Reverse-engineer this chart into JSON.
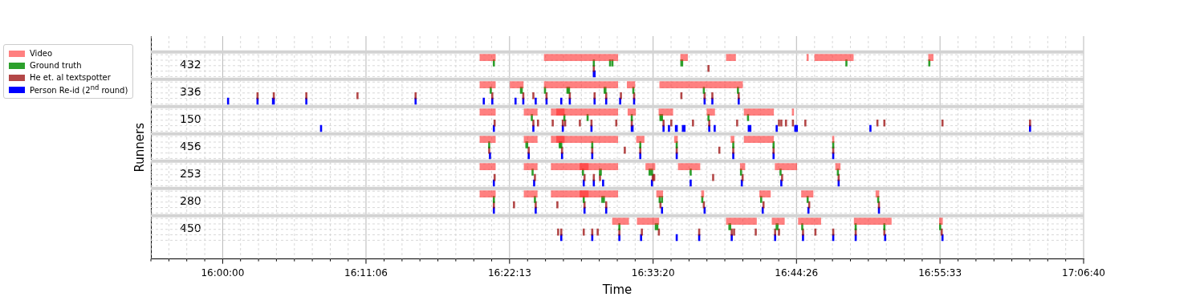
{
  "chart_data": {
    "type": "bar",
    "orientation": "horizontal",
    "xlabel": "Time",
    "ylabel": "Runners",
    "categories": [
      "432",
      "336",
      "150",
      "456",
      "253",
      "280",
      "450"
    ],
    "xlim": [
      15.9074,
      17.11111
    ],
    "xticks": [
      {
        "value": 15.9074,
        "label": null
      },
      {
        "value": 15.9306,
        "label": null
      },
      {
        "value": 15.9537,
        "label": null
      },
      {
        "value": 15.9769,
        "label": null
      },
      {
        "value": 16,
        "label": "16:00:00"
      },
      {
        "value": 16.0231,
        "label": null
      },
      {
        "value": 16.0463,
        "label": null
      },
      {
        "value": 16.0694,
        "label": null
      },
      {
        "value": 16.0926,
        "label": null
      },
      {
        "value": 16.1157,
        "label": null
      },
      {
        "value": 16.1389,
        "label": null
      },
      {
        "value": 16.162,
        "label": null
      },
      {
        "value": 16.185,
        "label": "16:11:06"
      },
      {
        "value": 16.2083,
        "label": null
      },
      {
        "value": 16.2315,
        "label": null
      },
      {
        "value": 16.2546,
        "label": null
      },
      {
        "value": 16.2778,
        "label": null
      },
      {
        "value": 16.3009,
        "label": null
      },
      {
        "value": 16.3241,
        "label": null
      },
      {
        "value": 16.3472,
        "label": null
      },
      {
        "value": 16.37028,
        "label": "16:22:13"
      },
      {
        "value": 16.3935,
        "label": null
      },
      {
        "value": 16.4167,
        "label": null
      },
      {
        "value": 16.4398,
        "label": null
      },
      {
        "value": 16.463,
        "label": null
      },
      {
        "value": 16.4861,
        "label": null
      },
      {
        "value": 16.5093,
        "label": null
      },
      {
        "value": 16.5324,
        "label": null
      },
      {
        "value": 16.55556,
        "label": "16:33:20"
      },
      {
        "value": 16.5787,
        "label": null
      },
      {
        "value": 16.6019,
        "label": null
      },
      {
        "value": 16.625,
        "label": null
      },
      {
        "value": 16.6481,
        "label": null
      },
      {
        "value": 16.6713,
        "label": null
      },
      {
        "value": 16.6944,
        "label": null
      },
      {
        "value": 16.7176,
        "label": null
      },
      {
        "value": 16.74056,
        "label": "16:44:26"
      },
      {
        "value": 16.7639,
        "label": null
      },
      {
        "value": 16.787,
        "label": null
      },
      {
        "value": 16.8102,
        "label": null
      },
      {
        "value": 16.8333,
        "label": null
      },
      {
        "value": 16.8565,
        "label": null
      },
      {
        "value": 16.8796,
        "label": null
      },
      {
        "value": 16.9028,
        "label": null
      },
      {
        "value": 16.92583,
        "label": "16:55:33"
      },
      {
        "value": 16.9491,
        "label": null
      },
      {
        "value": 16.9722,
        "label": null
      },
      {
        "value": 16.9954,
        "label": null
      },
      {
        "value": 17.0185,
        "label": null
      },
      {
        "value": 17.0417,
        "label": null
      },
      {
        "value": 17.0648,
        "label": null
      },
      {
        "value": 17.088,
        "label": null
      },
      {
        "value": 17.11111,
        "label": "17:06:40"
      }
    ],
    "grid": true,
    "legend": "left",
    "series": [
      {
        "name": "Video",
        "color": "#ff8080",
        "base": [
          16.332,
          16.332,
          16.332,
          16.332,
          16.332,
          16.332,
          16.503
        ],
        "values": [
          0.02,
          0.02,
          0.02,
          0.02,
          0.02,
          0.02,
          0.021
        ]
      },
      {
        "color": "#ff8080",
        "base": [
          16.415,
          16.371,
          16.389,
          16.389,
          16.389,
          16.389,
          16.535
        ],
        "values": [
          0.095,
          0.017,
          0.017,
          0.017,
          0.017,
          0.017,
          0.028
        ]
      },
      {
        "color": "#ff8080",
        "base": [
          16.591,
          16.415,
          16.424,
          16.424,
          16.424,
          16.424,
          16.65
        ],
        "values": [
          0.009,
          0.095,
          0.086,
          0.086,
          0.086,
          0.086,
          0.039
        ]
      },
      {
        "color": "#ff8080",
        "base": [
          16.65,
          16.522,
          16.431,
          16.431,
          16.461,
          16.461,
          16.709
        ],
        "values": [
          0.012,
          0.01,
          0.01,
          0.01,
          0.011,
          0.011,
          0.016
        ]
      },
      {
        "color": "#ff8080",
        "base": [
          16.754,
          16.564,
          16.523,
          16.534,
          16.546,
          16.56,
          16.743
        ],
        "values": [
          0.002,
          0.107,
          0.01,
          0.01,
          0.012,
          0.008,
          0.029
        ]
      },
      {
        "color": "#ff8080",
        "base": [
          16.764,
          null,
          16.563,
          16.583,
          16.588,
          16.618,
          16.815
        ],
        "values": [
          0.05,
          null,
          0.018,
          0.004,
          0.028,
          0.003,
          0.048
        ]
      },
      {
        "color": "#ff8080",
        "base": [
          16.911,
          null,
          16.625,
          16.656,
          16.668,
          16.693,
          16.925
        ],
        "values": [
          0.006,
          null,
          0.01,
          0.004,
          0.006,
          0.014,
          0.004
        ]
      },
      {
        "color": "#ff8080",
        "base": [
          null,
          null,
          16.673,
          16.673,
          16.713,
          16.747,
          null
        ],
        "values": [
          null,
          null,
          0.038,
          0.038,
          0.028,
          0.015,
          null
        ]
      },
      {
        "color": "#ff8080",
        "base": [
          null,
          null,
          16.735,
          16.787,
          16.791,
          16.843,
          null
        ],
        "values": [
          null,
          null,
          0.002,
          0.002,
          0.006,
          0.004,
          null
        ]
      },
      {
        "name": "Ground truth",
        "color": "#2ca02c",
        "base": [
          16.349,
          16.345,
          16.398,
          16.343,
          16.399,
          16.349,
          16.511
        ],
        "values": [
          0.002,
          0.002,
          0.002,
          0.002,
          0.002,
          0.002,
          0.002
        ]
      },
      {
        "color": "#2ca02c",
        "base": [
          16.478,
          16.384,
          16.44,
          16.391,
          16.464,
          16.402,
          16.558
        ],
        "values": [
          0.002,
          0.003,
          0.002,
          0.003,
          0.002,
          0.002,
          0.004
        ]
      },
      {
        "color": "#2ca02c",
        "base": [
          16.499,
          16.415,
          16.47,
          16.434,
          16.486,
          16.465,
          16.653
        ],
        "values": [
          0.002,
          0.002,
          0.002,
          0.002,
          0.003,
          0.002,
          0.003
        ]
      },
      {
        "color": "#2ca02c",
        "base": [
          16.502,
          16.444,
          16.527,
          16.436,
          16.55,
          16.489,
          16.714
        ],
        "values": [
          0.002,
          0.002,
          0.002,
          0.002,
          0.005,
          0.004,
          0.003
        ]
      },
      {
        "color": "#2ca02c",
        "base": [
          16.591,
          16.446,
          16.564,
          16.476,
          null,
          null,
          16.747
        ],
        "values": [
          0.003,
          0.002,
          0.002,
          0.002,
          null,
          null,
          0.002
        ]
      },
      {
        "color": "#2ca02c",
        "base": [
          16.804,
          16.492,
          16.566,
          16.538,
          null,
          null,
          16.816
        ],
        "values": [
          0.002,
          0.003,
          0.002,
          0.002,
          null,
          null,
          0.002
        ]
      },
      {
        "color": "#2ca02c",
        "base": [
          16.911,
          16.529,
          16.626,
          16.585,
          16.603,
          16.563,
          16.853
        ],
        "values": [
          0.002,
          0.002,
          0.002,
          0.002,
          0.002,
          0.002,
          0.002
        ]
      },
      {
        "color": "#2ca02c",
        "base": [
          null,
          16.62,
          16.677,
          16.658,
          16.668,
          16.566,
          16.925
        ],
        "values": [
          null,
          0.002,
          0.002,
          0.002,
          0.002,
          0.002,
          0.002
        ]
      },
      {
        "color": "#2ca02c",
        "base": [
          null,
          16.664,
          null,
          16.71,
          16.719,
          16.618,
          null
        ],
        "values": [
          null,
          0.002,
          null,
          0.002,
          0.002,
          0.002,
          null
        ]
      },
      {
        "color": "#2ca02c",
        "base": [
          null,
          null,
          null,
          16.787,
          16.793,
          16.694,
          null
        ],
        "values": [
          null,
          null,
          null,
          0.002,
          0.002,
          0.002,
          null
        ]
      },
      {
        "color": "#2ca02c",
        "base": [
          null,
          null,
          null,
          null,
          null,
          16.754,
          null
        ],
        "values": [
          null,
          null,
          null,
          null,
          null,
          0.002,
          null
        ]
      },
      {
        "color": "#2ca02c",
        "base": [
          null,
          null,
          null,
          null,
          null,
          16.845,
          null
        ],
        "values": [
          null,
          null,
          null,
          null,
          null,
          0.002,
          null
        ]
      },
      {
        "name": "He et. al textspotter",
        "color": "#b34747",
        "base": [
          16.478,
          16.044,
          16.35,
          16.343,
          16.35,
          16.349,
          16.432
        ],
        "values": [
          0.002,
          0.002,
          0.002,
          0.002,
          0.002,
          0.002,
          0.002
        ]
      },
      {
        "color": "#b34747",
        "base": [
          16.626,
          16.065,
          16.4,
          16.394,
          16.402,
          16.375,
          16.436
        ],
        "values": [
          0.002,
          0.002,
          0.002,
          0.002,
          0.002,
          0.002,
          0.002
        ]
      },
      {
        "color": "#b34747",
        "base": [
          null,
          16.107,
          16.406,
          16.437,
          16.466,
          16.403,
          16.465
        ],
        "values": [
          null,
          0.002,
          0.002,
          0.002,
          0.002,
          0.002,
          0.002
        ]
      },
      {
        "color": "#b34747",
        "base": [
          null,
          16.173,
          16.425,
          16.476,
          16.478,
          16.431,
          16.476
        ],
        "values": [
          null,
          0.002,
          0.002,
          0.002,
          0.002,
          0.002,
          0.002
        ]
      },
      {
        "color": "#b34747",
        "base": [
          null,
          16.248,
          16.438,
          16.518,
          16.486,
          16.466,
          16.483
        ],
        "values": [
          null,
          0.002,
          0.002,
          0.002,
          0.002,
          0.002,
          0.002
        ]
      },
      {
        "color": "#b34747",
        "base": [
          null,
          16.347,
          16.441,
          16.538,
          16.554,
          16.494,
          16.511
        ],
        "values": [
          null,
          0.002,
          0.002,
          0.002,
          0.002,
          0.002,
          0.002
        ]
      },
      {
        "color": "#b34747",
        "base": [
          null,
          16.387,
          16.46,
          16.585,
          16.556,
          16.564,
          16.54
        ],
        "values": [
          null,
          0.002,
          0.002,
          0.002,
          0.002,
          0.002,
          0.002
        ]
      },
      {
        "color": "#b34747",
        "base": [
          null,
          16.4,
          16.475,
          16.64,
          16.632,
          16.62,
          16.562
        ],
        "values": [
          null,
          0.002,
          0.002,
          0.002,
          0.002,
          0.002,
          0.002
        ]
      },
      {
        "color": "#b34747",
        "base": [
          null,
          16.417,
          16.507,
          16.658,
          16.67,
          16.697,
          16.614
        ],
        "values": [
          null,
          0.002,
          0.002,
          0.002,
          0.002,
          0.002,
          0.002
        ]
      },
      {
        "color": "#b34747",
        "base": [
          null,
          16.447,
          16.527,
          16.71,
          16.721,
          16.756,
          16.656
        ],
        "values": [
          null,
          0.002,
          0.002,
          0.002,
          0.002,
          0.002,
          0.002
        ]
      },
      {
        "color": "#b34747",
        "base": [
          null,
          16.479,
          16.568,
          16.787,
          16.794,
          16.846,
          16.659
        ],
        "values": [
          null,
          0.002,
          0.002,
          0.002,
          0.002,
          0.002,
          0.002
        ]
      },
      {
        "color": "#b34747",
        "base": [
          null,
          16.494,
          16.578,
          null,
          null,
          null,
          16.687
        ],
        "values": [
          null,
          0.002,
          0.002,
          null,
          null,
          null,
          0.002
        ]
      },
      {
        "color": "#b34747",
        "base": [
          null,
          16.513,
          16.606,
          null,
          null,
          null,
          16.712
        ],
        "values": [
          null,
          0.002,
          0.002,
          null,
          null,
          null,
          0.002
        ]
      },
      {
        "color": "#b34747",
        "base": [
          null,
          16.53,
          16.627,
          null,
          null,
          null,
          16.717
        ],
        "values": [
          null,
          0.002,
          0.002,
          null,
          null,
          null,
          0.002
        ]
      },
      {
        "color": "#b34747",
        "base": [
          null,
          16.591,
          16.663,
          null,
          null,
          null,
          16.748
        ],
        "values": [
          null,
          0.002,
          0.002,
          null,
          null,
          null,
          0.002
        ]
      },
      {
        "color": "#b34747",
        "base": [
          null,
          16.621,
          16.717,
          null,
          null,
          null,
          16.764
        ],
        "values": [
          null,
          0.002,
          0.002,
          null,
          null,
          null,
          0.002
        ]
      },
      {
        "color": "#b34747",
        "base": [
          null,
          16.631,
          16.72,
          null,
          null,
          null,
          16.787
        ],
        "values": [
          null,
          0.002,
          0.002,
          null,
          null,
          null,
          0.002
        ]
      },
      {
        "color": "#b34747",
        "base": [
          null,
          16.665,
          16.726,
          null,
          null,
          null,
          16.816
        ],
        "values": [
          null,
          0.002,
          0.002,
          null,
          null,
          null,
          0.002
        ]
      },
      {
        "color": "#b34747",
        "base": [
          null,
          null,
          16.735,
          null,
          null,
          null,
          16.853
        ],
        "values": [
          null,
          null,
          0.002,
          null,
          null,
          null,
          0.002
        ]
      },
      {
        "color": "#b34747",
        "base": [
          null,
          null,
          16.751,
          null,
          null,
          null,
          16.927
        ],
        "values": [
          null,
          null,
          0.002,
          null,
          null,
          null,
          0.002
        ]
      },
      {
        "color": "#b34747",
        "base": [
          null,
          null,
          16.844,
          null,
          null,
          null,
          null
        ],
        "values": [
          null,
          null,
          0.002,
          null,
          null,
          null,
          null
        ]
      },
      {
        "color": "#b34747",
        "base": [
          null,
          null,
          16.853,
          null,
          null,
          null,
          null
        ],
        "values": [
          null,
          null,
          0.002,
          null,
          null,
          null,
          null
        ]
      },
      {
        "color": "#b34747",
        "base": [
          null,
          null,
          16.928,
          null,
          null,
          null,
          null
        ],
        "values": [
          null,
          null,
          0.002,
          null,
          null,
          null,
          null
        ]
      },
      {
        "color": "#b34747",
        "base": [
          null,
          null,
          17.041,
          null,
          null,
          null,
          null
        ],
        "values": [
          null,
          null,
          0.002,
          null,
          null,
          null,
          null
        ]
      },
      {
        "name": "Person Re-id (2$^{nd}$ round)",
        "color": "#0000ff",
        "base": [
          16.478,
          16.006,
          16.126,
          16.344,
          16.349,
          16.349,
          16.436
        ],
        "values": [
          0.003,
          0.002,
          0.002,
          0.002,
          0.002,
          0.002,
          0.002
        ]
      },
      {
        "color": "#0000ff",
        "base": [
          null,
          16.044,
          16.349,
          16.394,
          16.401,
          16.403,
          16.476
        ],
        "values": [
          null,
          0.002,
          0.002,
          0.002,
          0.002,
          0.002,
          0.002
        ]
      },
      {
        "color": "#0000ff",
        "base": [
          null,
          16.064,
          16.4,
          16.437,
          16.465,
          16.466,
          16.511
        ],
        "values": [
          null,
          0.003,
          0.002,
          0.002,
          0.002,
          0.002,
          0.002
        ]
      },
      {
        "color": "#0000ff",
        "base": [
          null,
          16.107,
          16.438,
          16.476,
          16.478,
          16.494,
          16.539
        ],
        "values": [
          null,
          0.002,
          0.002,
          0.002,
          0.002,
          0.002,
          0.002
        ]
      },
      {
        "color": "#0000ff",
        "base": [
          null,
          16.248,
          16.475,
          16.538,
          16.49,
          16.566,
          16.585
        ],
        "values": [
          null,
          0.002,
          0.002,
          0.002,
          0.002,
          0.002,
          0.002
        ]
      },
      {
        "color": "#0000ff",
        "base": [
          null,
          16.336,
          16.527,
          16.585,
          16.553,
          16.621,
          16.614
        ],
        "values": [
          null,
          0.002,
          0.003,
          0.002,
          0.002,
          0.002,
          0.002
        ]
      },
      {
        "color": "#0000ff",
        "base": [
          null,
          16.347,
          16.568,
          16.658,
          16.603,
          16.696,
          16.656
        ],
        "values": [
          null,
          0.002,
          0.002,
          0.002,
          0.002,
          0.002,
          0.002
        ]
      },
      {
        "color": "#0000ff",
        "base": [
          null,
          16.377,
          16.575,
          16.71,
          16.669,
          16.755,
          16.712
        ],
        "values": [
          null,
          0.002,
          0.002,
          0.002,
          0.002,
          0.002,
          0.002
        ]
      },
      {
        "color": "#0000ff",
        "base": [
          null,
          16.387,
          16.584,
          16.787,
          16.72,
          16.846,
          16.748
        ],
        "values": [
          null,
          0.002,
          0.003,
          0.002,
          0.002,
          0.002,
          0.002
        ]
      },
      {
        "color": "#0000ff",
        "base": [
          null,
          16.403,
          16.593,
          null,
          16.794,
          null,
          16.787
        ],
        "values": [
          null,
          0.002,
          0.004,
          null,
          0.002,
          null,
          0.002
        ]
      },
      {
        "color": "#0000ff",
        "base": [
          null,
          16.417,
          16.627,
          null,
          null,
          null,
          16.816
        ],
        "values": [
          null,
          0.002,
          0.002,
          null,
          null,
          null,
          0.002
        ]
      },
      {
        "color": "#0000ff",
        "base": [
          null,
          16.436,
          16.634,
          null,
          null,
          null,
          16.854
        ],
        "values": [
          null,
          0.002,
          0.002,
          null,
          null,
          null,
          0.002
        ]
      },
      {
        "color": "#0000ff",
        "base": [
          null,
          16.447,
          16.678,
          null,
          null,
          null,
          16.928
        ],
        "values": [
          null,
          0.002,
          0.004,
          null,
          null,
          null,
          0.002
        ]
      },
      {
        "color": "#0000ff",
        "base": [
          null,
          16.479,
          16.714,
          null,
          null,
          null,
          null
        ],
        "values": [
          null,
          0.002,
          0.002,
          null,
          null,
          null,
          null
        ]
      },
      {
        "color": "#0000ff",
        "base": [
          null,
          16.494,
          16.738,
          null,
          null,
          null,
          null
        ],
        "values": [
          null,
          0.002,
          0.002,
          null,
          null,
          null,
          null
        ]
      },
      {
        "color": "#0000ff",
        "base": [
          null,
          16.512,
          16.74,
          null,
          null,
          null,
          null
        ],
        "values": [
          null,
          0.002,
          0.002,
          null,
          null,
          null,
          null
        ]
      },
      {
        "color": "#0000ff",
        "base": [
          null,
          16.53,
          16.835,
          null,
          null,
          null,
          null
        ],
        "values": [
          null,
          0.002,
          0.002,
          null,
          null,
          null,
          null
        ]
      },
      {
        "color": "#0000ff",
        "base": [
          null,
          16.621,
          17.041,
          null,
          null,
          null,
          null
        ],
        "values": [
          null,
          0.002,
          0.002,
          null,
          null,
          null,
          null
        ]
      },
      {
        "color": "#0000ff",
        "base": [
          null,
          16.631,
          null,
          null,
          null,
          null,
          null
        ],
        "values": [
          null,
          0.002,
          null,
          null,
          null,
          null,
          null
        ]
      },
      {
        "color": "#0000ff",
        "base": [
          null,
          16.665,
          null,
          null,
          null,
          null,
          null
        ],
        "values": [
          null,
          0.002,
          null,
          null,
          null,
          null,
          null
        ]
      }
    ]
  }
}
